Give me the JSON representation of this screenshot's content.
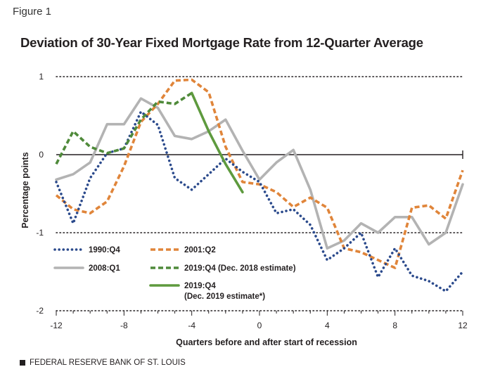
{
  "figure_label": "Figure 1",
  "footer": {
    "source": "FEDERAL RESERVE BANK OF ST. LOUIS"
  },
  "colors": {
    "s1990": "#2b4a8c",
    "s2001": "#e0853a",
    "s2008": "#b3b3b3",
    "s2019a": "#4f8a3a",
    "s2019b": "#5e9a3e",
    "axis": "#231f20"
  },
  "chart_data": {
    "type": "line",
    "title": "Deviation of 30-Year Fixed Mortgage Rate from 12-Quarter Average",
    "xlabel": "Quarters before and after start of recession",
    "ylabel": "Percentage points",
    "xlim": [
      -12,
      12
    ],
    "ylim": [
      -2,
      1
    ],
    "xticks": [
      -12,
      -8,
      -4,
      0,
      4,
      8,
      12
    ],
    "yticks": [
      1,
      0,
      -1,
      -2
    ],
    "grid": "dotted horizontal at 1, -1, -2; solid zero line",
    "series": [
      {
        "key": "s1990",
        "name": "1990:Q4",
        "style": "dotted",
        "x": [
          -12,
          -11,
          -10,
          -9,
          -8,
          -7,
          -6,
          -5,
          -4,
          -3,
          -2,
          -1,
          0,
          1,
          2,
          3,
          4,
          5,
          6,
          7,
          8,
          9,
          10,
          11,
          12
        ],
        "y": [
          -0.35,
          -0.88,
          -0.3,
          0.02,
          0.08,
          0.55,
          0.38,
          -0.3,
          -0.45,
          -0.25,
          -0.05,
          -0.22,
          -0.35,
          -0.75,
          -0.7,
          -0.9,
          -1.35,
          -1.2,
          -1.0,
          -1.57,
          -1.2,
          -1.55,
          -1.62,
          -1.75,
          -1.5
        ]
      },
      {
        "key": "s2001",
        "name": "2001:Q2",
        "style": "dashed",
        "x": [
          -12,
          -11,
          -10,
          -9,
          -8,
          -7,
          -6,
          -5,
          -4,
          -3,
          -2,
          -1,
          0,
          1,
          2,
          3,
          4,
          5,
          6,
          7,
          8,
          9,
          10,
          11,
          12
        ],
        "y": [
          -0.52,
          -0.7,
          -0.75,
          -0.6,
          -0.15,
          0.42,
          0.65,
          0.95,
          0.96,
          0.8,
          0.1,
          -0.35,
          -0.38,
          -0.48,
          -0.67,
          -0.55,
          -0.68,
          -1.2,
          -1.25,
          -1.35,
          -1.45,
          -0.68,
          -0.65,
          -0.82,
          -0.2
        ]
      },
      {
        "key": "s2008",
        "name": "2008:Q1",
        "style": "solid",
        "x": [
          -12,
          -11,
          -10,
          -9,
          -8,
          -7,
          -6,
          -5,
          -4,
          -3,
          -2,
          -1,
          0,
          1,
          2,
          3,
          4,
          5,
          6,
          7,
          8,
          9,
          10,
          11,
          12
        ],
        "y": [
          -0.32,
          -0.25,
          -0.1,
          0.39,
          0.39,
          0.72,
          0.6,
          0.24,
          0.2,
          0.3,
          0.45,
          0.05,
          -0.32,
          -0.1,
          0.06,
          -0.45,
          -1.2,
          -1.1,
          -0.88,
          -1.0,
          -0.8,
          -0.8,
          -1.15,
          -1.0,
          -0.38
        ]
      },
      {
        "key": "s2019a",
        "name": "2019:Q4 (Dec. 2018 estimate)",
        "style": "dashed",
        "x": [
          -12,
          -11,
          -10,
          -9,
          -8,
          -7,
          -6,
          -5,
          -4
        ],
        "y": [
          -0.12,
          0.3,
          0.1,
          0.02,
          0.08,
          0.45,
          0.68,
          0.65,
          0.79
        ]
      },
      {
        "key": "s2019b",
        "name": "2019:Q4",
        "name_line2": "(Dec. 2019 estimate*)",
        "style": "solid",
        "x": [
          -4,
          -3,
          -2,
          -1
        ],
        "y": [
          0.79,
          0.3,
          -0.12,
          -0.48
        ]
      }
    ]
  }
}
